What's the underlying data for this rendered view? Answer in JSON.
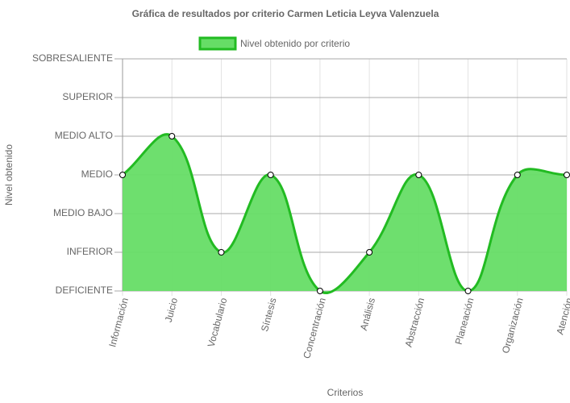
{
  "chart_data": {
    "type": "line",
    "title": "Gráfica de resultados por criterio Carmen Leticia Leyva Valenzuela",
    "x_label": "Criterios",
    "y_label": "Nivel obtenido",
    "categories": [
      "Información",
      "Juicio",
      "Vocabulario",
      "Síntesis",
      "Concentración",
      "Análisis",
      "Abstracción",
      "Planeación",
      "Organización",
      "Atención"
    ],
    "series": [
      {
        "name": "Nivel obtenido por criterio",
        "color": "#22bb22",
        "fill": "#66dd66",
        "values": [
          3,
          4,
          1,
          3,
          0,
          1,
          3,
          0,
          3,
          3
        ]
      }
    ],
    "ylim": [
      0,
      6
    ],
    "yticks": [
      {
        "value": 0,
        "label": "DEFICIENTE"
      },
      {
        "value": 1,
        "label": "INFERIOR"
      },
      {
        "value": 2,
        "label": "MEDIO BAJO"
      },
      {
        "value": 3,
        "label": "MEDIO"
      },
      {
        "value": 4,
        "label": "MEDIO ALTO"
      },
      {
        "value": 5,
        "label": "SUPERIOR"
      },
      {
        "value": 6,
        "label": "SOBRESALIENTE"
      }
    ],
    "grid": true,
    "legend": "top"
  }
}
